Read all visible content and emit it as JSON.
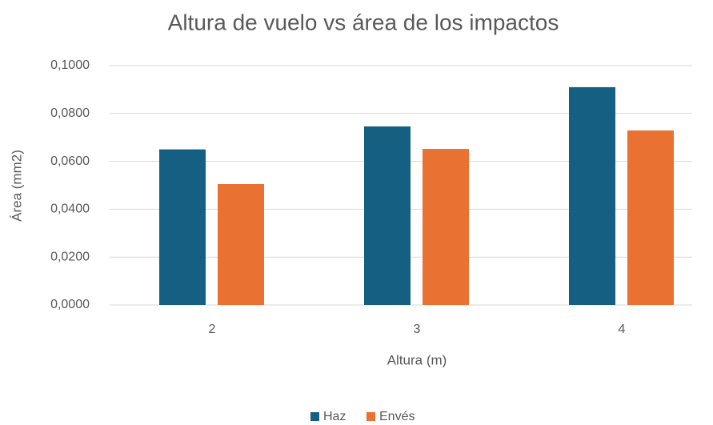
{
  "chart_data": {
    "type": "bar",
    "title": "Altura de vuelo vs área de los impactos",
    "x_label": "Altura (m)",
    "y_label": "Área (mm2)",
    "categories": [
      "2",
      "3",
      "4"
    ],
    "series": [
      {
        "name": "Haz",
        "color": "#156082",
        "values": [
          0.065,
          0.0746,
          0.091
        ]
      },
      {
        "name": "Envés",
        "color": "#e97132",
        "values": [
          0.0505,
          0.0652,
          0.0729
        ]
      }
    ],
    "ylim": [
      0,
      0.1
    ],
    "yticks": [
      {
        "value": 0,
        "label": "0,0000"
      },
      {
        "value": 0.02,
        "label": "0,0200"
      },
      {
        "value": 0.04,
        "label": "0,0400"
      },
      {
        "value": 0.06,
        "label": "0,0600"
      },
      {
        "value": 0.08,
        "label": "0,0800"
      },
      {
        "value": 0.1,
        "label": "0,1000"
      }
    ],
    "grid": true,
    "legend": "bottom"
  }
}
